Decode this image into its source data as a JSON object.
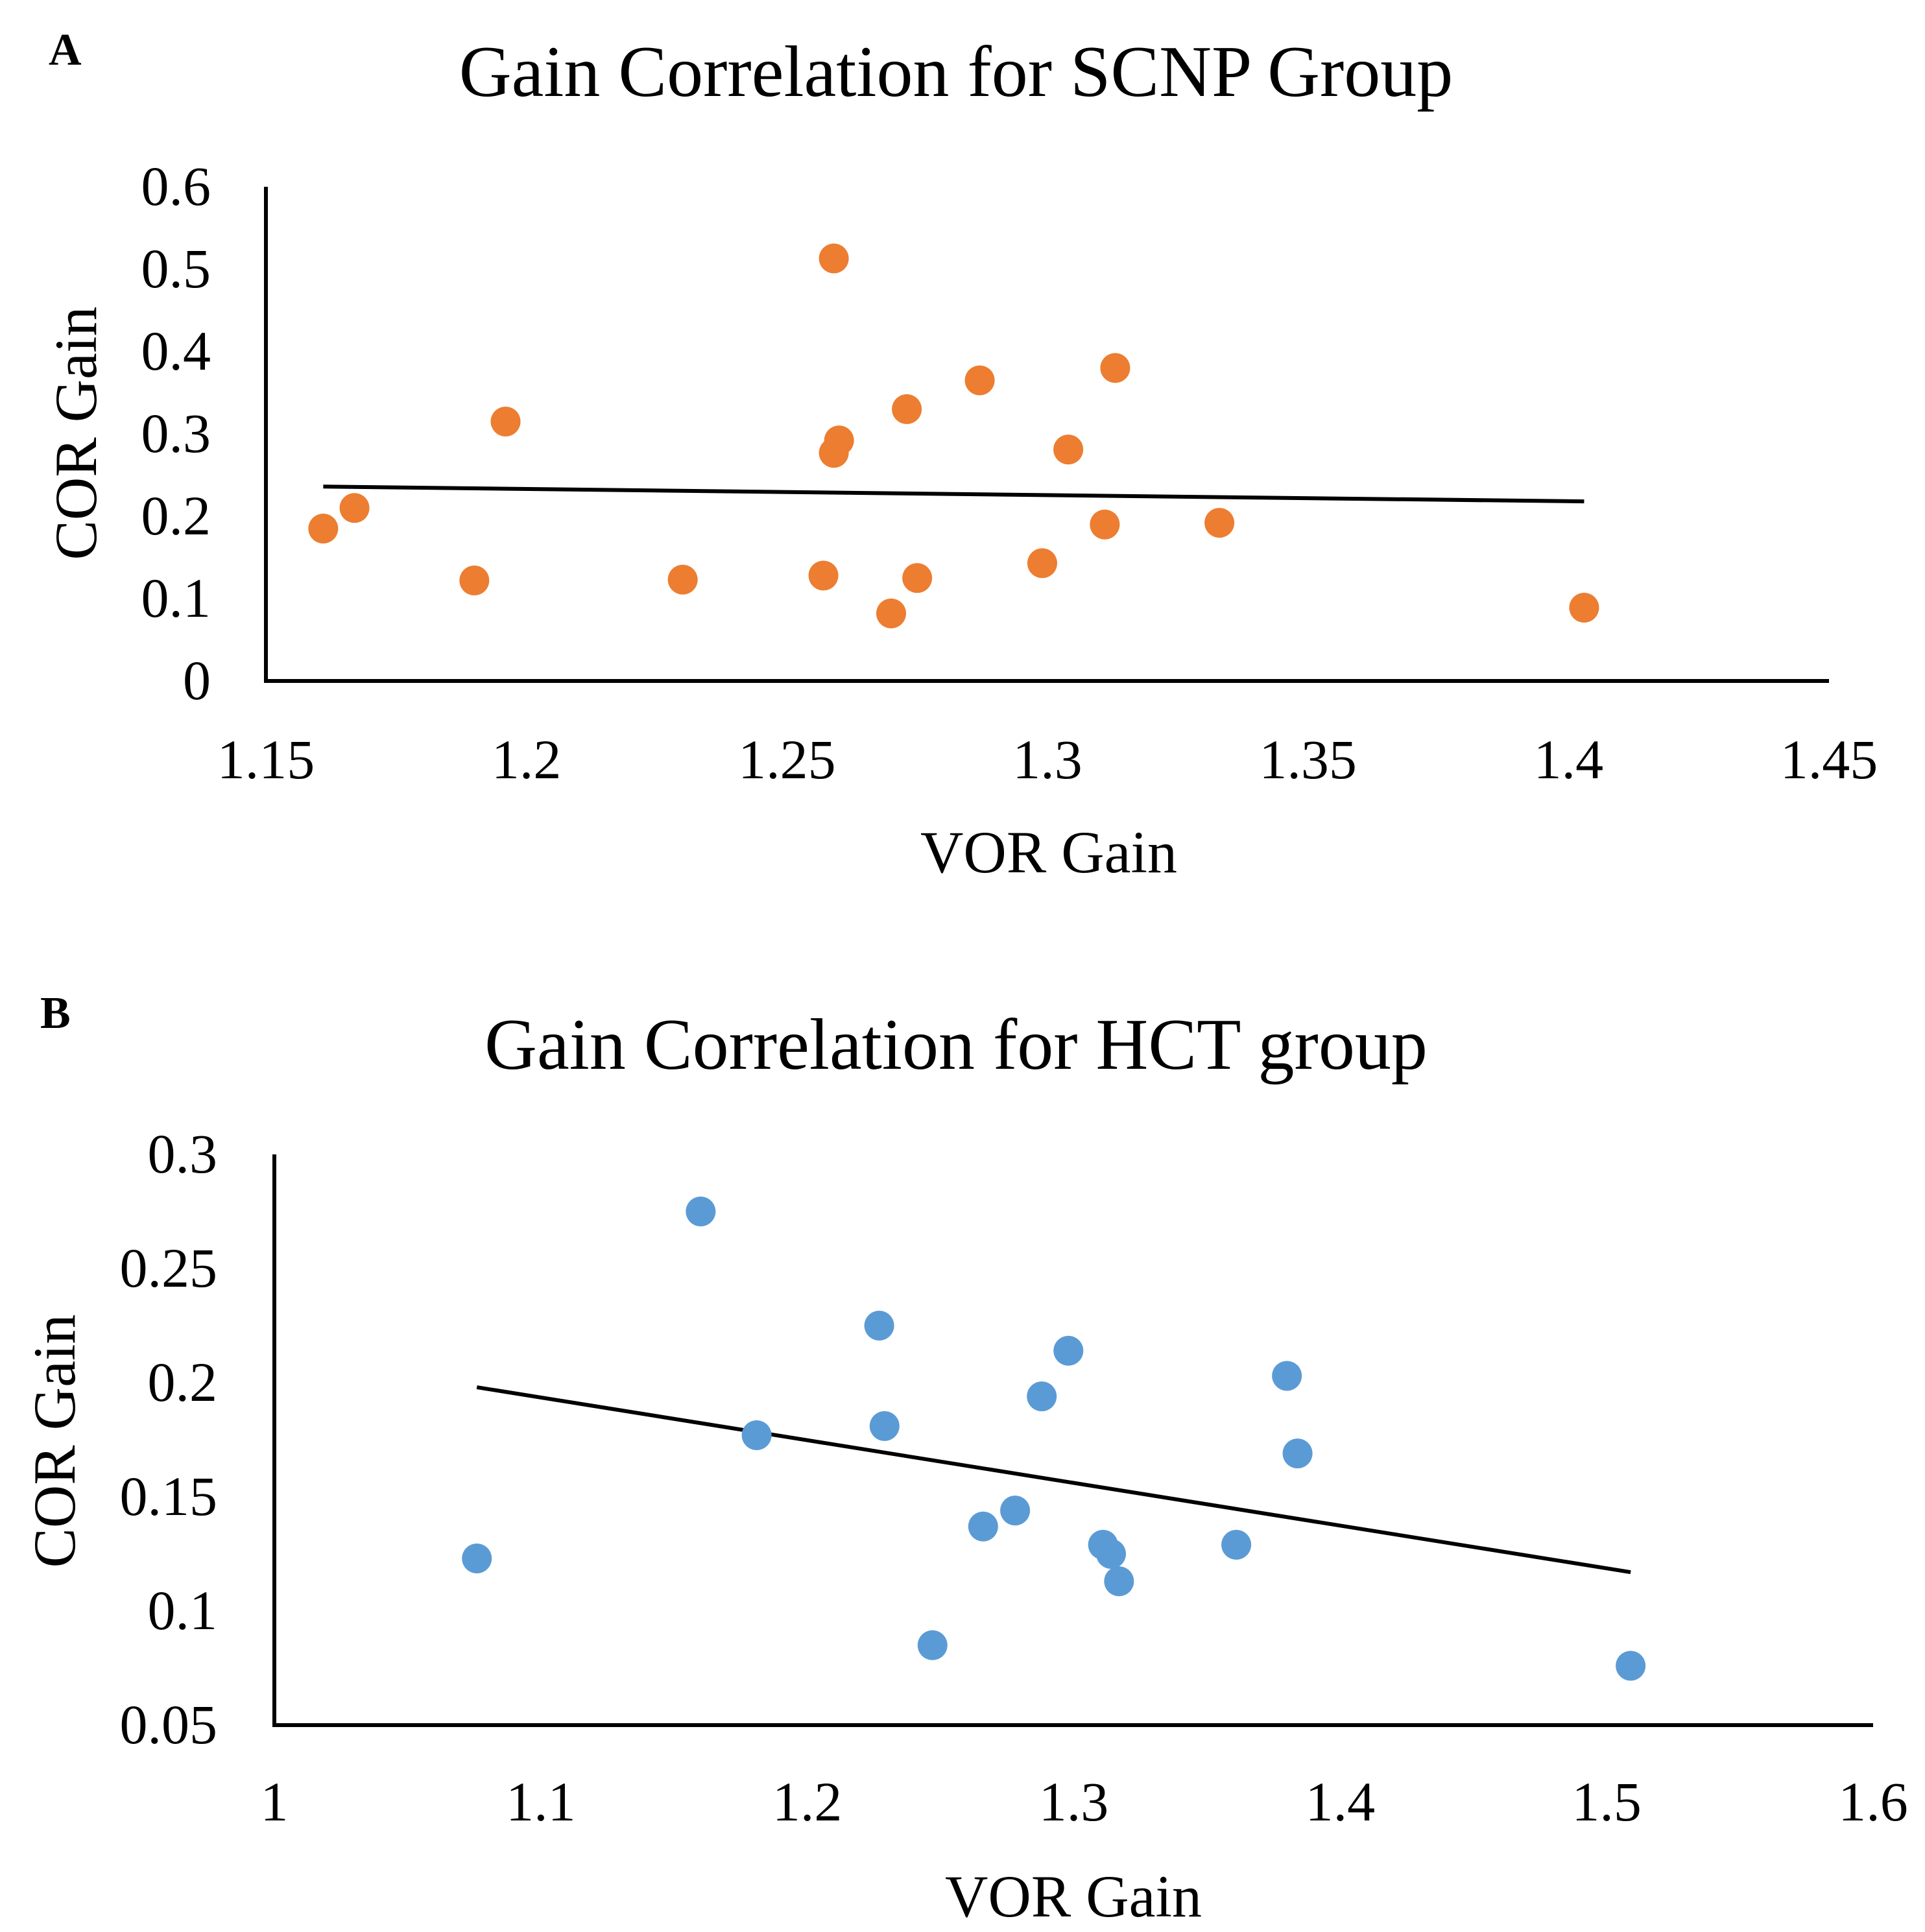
{
  "chart_data": [
    {
      "type": "scatter",
      "panel_label": "A",
      "title": "Gain Correlation for SCNP Group",
      "xlabel": "VOR Gain",
      "ylabel": "COR Gain",
      "xlim": [
        1.15,
        1.45
      ],
      "ylim": [
        0,
        0.6
      ],
      "xticks": [
        "1.15",
        "1.2",
        "1.25",
        "1.3",
        "1.35",
        "1.4",
        "1.45"
      ],
      "yticks": [
        "0",
        "0.1",
        "0.2",
        "0.3",
        "0.4",
        "0.5",
        "0.6"
      ],
      "grid": false,
      "marker_color": "#ED7D31",
      "series": [
        {
          "name": "SCNP",
          "x": [
            1.161,
            1.167,
            1.19,
            1.196,
            1.23,
            1.257,
            1.259,
            1.259,
            1.26,
            1.27,
            1.273,
            1.275,
            1.287,
            1.299,
            1.304,
            1.311,
            1.313,
            1.333,
            1.403
          ],
          "y": [
            0.185,
            0.21,
            0.122,
            0.315,
            0.123,
            0.128,
            0.513,
            0.277,
            0.292,
            0.082,
            0.33,
            0.125,
            0.365,
            0.143,
            0.281,
            0.19,
            0.38,
            0.192,
            0.089
          ]
        }
      ],
      "trendline": {
        "x": [
          1.161,
          1.403
        ],
        "y": [
          0.236,
          0.218
        ]
      }
    },
    {
      "type": "scatter",
      "panel_label": "B",
      "title": "Gain Correlation for HCT group",
      "xlabel": "VOR Gain",
      "ylabel": "COR Gain",
      "xlim": [
        1,
        1.6
      ],
      "ylim": [
        0.05,
        0.3
      ],
      "xticks": [
        "1",
        "1.1",
        "1.2",
        "1.3",
        "1.4",
        "1.5",
        "1.6"
      ],
      "yticks": [
        "0.05",
        "0.1",
        "0.15",
        "0.2",
        "0.25",
        "0.3"
      ],
      "grid": false,
      "marker_color": "#5B9BD5",
      "series": [
        {
          "name": "HCT",
          "x": [
            1.076,
            1.16,
            1.181,
            1.227,
            1.229,
            1.247,
            1.266,
            1.278,
            1.288,
            1.298,
            1.311,
            1.314,
            1.317,
            1.361,
            1.38,
            1.384,
            1.509
          ],
          "y": [
            0.123,
            0.275,
            0.177,
            0.225,
            0.181,
            0.085,
            0.137,
            0.144,
            0.194,
            0.214,
            0.129,
            0.125,
            0.113,
            0.129,
            0.203,
            0.169,
            0.076
          ]
        }
      ],
      "trendline": {
        "x": [
          1.076,
          1.509
        ],
        "y": [
          0.198,
          0.117
        ]
      }
    }
  ]
}
